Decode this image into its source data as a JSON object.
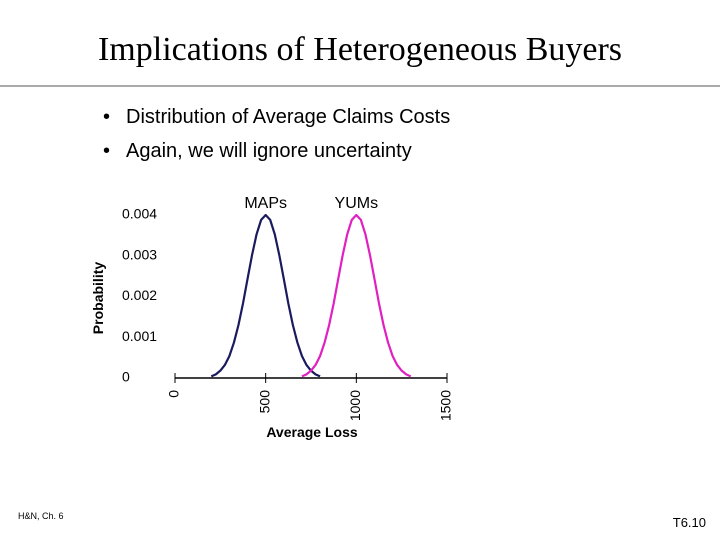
{
  "slide": {
    "title": "Implications of Heterogeneous Buyers",
    "bullets": [
      "Distribution of Average Claims Costs",
      "Again, we will ignore uncertainty"
    ],
    "footer_left": "H&N, Ch. 6",
    "footer_right": "T6.10"
  },
  "chart_data": {
    "type": "line",
    "x_label": "Average Loss",
    "y_label": "Probability",
    "x": [
      200,
      225,
      250,
      275,
      300,
      325,
      350,
      375,
      400,
      425,
      450,
      475,
      500,
      525,
      550,
      575,
      600,
      625,
      650,
      675,
      700,
      725,
      750,
      775,
      800,
      825,
      850,
      875,
      900,
      925,
      950,
      975,
      1000,
      1025,
      1050,
      1075,
      1100,
      1125,
      1150,
      1175,
      1200,
      1225,
      1250,
      1275,
      1300
    ],
    "series": [
      {
        "name": "MAPs",
        "color": "#1a1a5e",
        "values": [
          4e-05,
          9e-05,
          0.00018,
          0.00032,
          0.00054,
          0.00087,
          0.0013,
          0.00183,
          0.00243,
          0.00302,
          0.00353,
          0.00388,
          0.004,
          0.00388,
          0.00353,
          0.00302,
          0.00243,
          0.00183,
          0.0013,
          0.00087,
          0.00054,
          0.00032,
          0.00018,
          9e-05,
          4e-05,
          null,
          null,
          null,
          null,
          null,
          null,
          null,
          null,
          null,
          null,
          null,
          null,
          null,
          null,
          null,
          null,
          null,
          null,
          null,
          null
        ]
      },
      {
        "name": "YUMs",
        "color": "#e020c0",
        "values": [
          null,
          null,
          null,
          null,
          null,
          null,
          null,
          null,
          null,
          null,
          null,
          null,
          null,
          null,
          null,
          null,
          null,
          null,
          null,
          null,
          4e-05,
          9e-05,
          0.00018,
          0.00032,
          0.00054,
          0.00087,
          0.0013,
          0.00183,
          0.00243,
          0.00302,
          0.00353,
          0.00388,
          0.004,
          0.00388,
          0.00353,
          0.00302,
          0.00243,
          0.00183,
          0.0013,
          0.00087,
          0.00054,
          0.00032,
          0.00018,
          9e-05,
          4e-05
        ]
      }
    ],
    "xlim": [
      0,
      1500
    ],
    "xticks": [
      0,
      500,
      1000,
      1500
    ],
    "ylim": [
      0,
      0.004
    ],
    "yticks": [
      0,
      0.001,
      0.002,
      0.003,
      0.004
    ]
  }
}
